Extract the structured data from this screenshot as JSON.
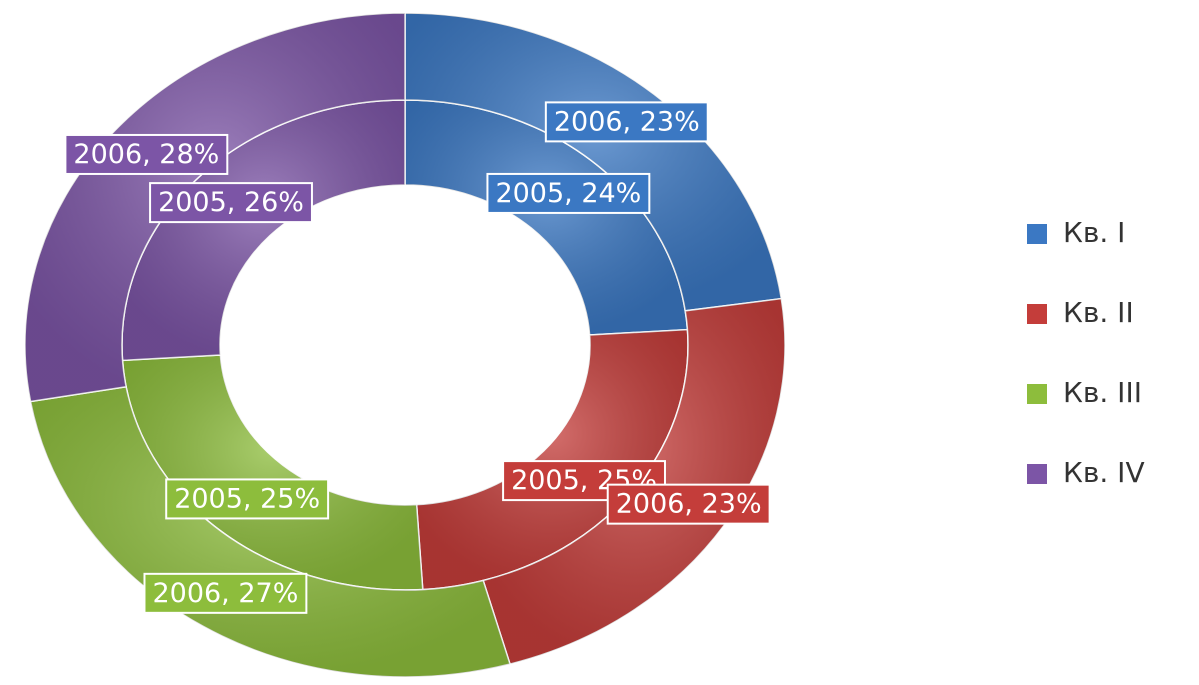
{
  "chart_data": {
    "type": "doughnut",
    "categories": [
      "Кв. I",
      "Кв. II",
      "Кв. III",
      "Кв. IV"
    ],
    "colors": [
      "#3b78c3",
      "#c43d3a",
      "#8dbd3c",
      "#7c55a6"
    ],
    "series": [
      {
        "name": "2005",
        "values": [
          24,
          25,
          25,
          26
        ],
        "value_labels": [
          "2005, 24%",
          "2005, 25%",
          "2005, 25%",
          "2005, 26%"
        ]
      },
      {
        "name": "2006",
        "values": [
          23,
          23,
          27,
          28
        ],
        "value_labels": [
          "2006, 23%",
          "2006, 23%",
          "2006, 27%",
          "2006, 28%"
        ]
      }
    ],
    "legend": "right"
  }
}
